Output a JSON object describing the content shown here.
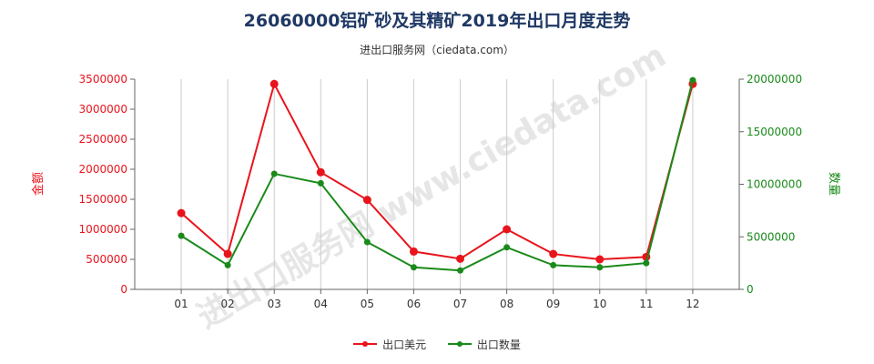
{
  "title": "26060000铝矿砂及其精矿2019年出口月度走势",
  "subtitle": "进出口服务网（ciedata.com）",
  "watermark": "进出口服务网 www.ciedata.com",
  "colors": {
    "usd": "#e8141c",
    "qty": "#1a8a1a",
    "grid": "#cccccc",
    "axis": "#666666"
  },
  "chart_data": {
    "type": "line",
    "title": "26060000铝矿砂及其精矿2019年出口月度走势",
    "x": [
      "01",
      "02",
      "03",
      "04",
      "05",
      "06",
      "07",
      "08",
      "09",
      "10",
      "11",
      "12"
    ],
    "y_left": {
      "label": "金额",
      "range": [
        0,
        3500000
      ],
      "ticks": [
        "0",
        "500000",
        "1000000",
        "1500000",
        "2000000",
        "2500000",
        "3000000",
        "3500000"
      ]
    },
    "y_right": {
      "label": "数量",
      "range": [
        0,
        20000000
      ],
      "ticks": [
        "0",
        "5000000",
        "10000000",
        "15000000",
        "20000000"
      ]
    },
    "series": [
      {
        "name": "出口美元",
        "axis": "left",
        "values": [
          1270000,
          590000,
          3420000,
          1950000,
          1490000,
          630000,
          510000,
          1000000,
          590000,
          500000,
          540000,
          3420000
        ]
      },
      {
        "name": "出口数量",
        "axis": "right",
        "values": [
          5100000,
          2300000,
          11000000,
          10100000,
          4500000,
          2100000,
          1800000,
          4000000,
          2300000,
          2100000,
          2500000,
          19900000
        ]
      }
    ],
    "grid": true,
    "legend": "bottom"
  }
}
